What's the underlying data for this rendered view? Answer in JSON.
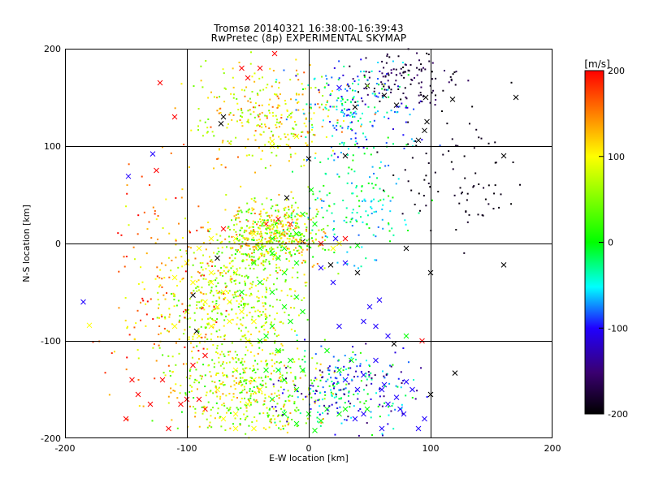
{
  "chart_data": {
    "type": "scatter",
    "title": "Tromsø 20140321 16:38:00-16:39:43",
    "subtitle": "RwPretec (8p) EXPERIMENTAL SKYMAP",
    "xlabel": "E-W location [km]",
    "ylabel": "N-S location [km]",
    "xlim": [
      -200,
      200
    ],
    "ylim": [
      -200,
      200
    ],
    "xticks": [
      "-200",
      "-100",
      "0",
      "100",
      "200"
    ],
    "yticks": [
      "-200",
      "-100",
      "0",
      "100",
      "200"
    ],
    "grid": true,
    "colorbar": {
      "label": "[m/s]",
      "range": [
        -200,
        200
      ],
      "ticks": [
        "200",
        "100",
        "0",
        "-100",
        "-200"
      ],
      "colormap": [
        "#000000",
        "#3a0070",
        "#2000ff",
        "#00ffff",
        "#00ff00",
        "#ffff00",
        "#ff0000"
      ]
    },
    "marker_types": [
      "x",
      "dot"
    ],
    "series": [
      {
        "marker": "x",
        "points": [
          [
            -122,
            165,
            200
          ],
          [
            -110,
            130,
            200
          ],
          [
            -128,
            92,
            -100
          ],
          [
            -148,
            69,
            -100
          ],
          [
            -125,
            75,
            200
          ],
          [
            -185,
            -60,
            -100
          ],
          [
            -180,
            -84,
            100
          ],
          [
            -95,
            -53,
            -200
          ],
          [
            -92,
            -90,
            -200
          ],
          [
            -75,
            -15,
            -200
          ],
          [
            -70,
            130,
            -200
          ],
          [
            -72,
            123,
            -200
          ],
          [
            -55,
            180,
            200
          ],
          [
            -50,
            170,
            200
          ],
          [
            -40,
            180,
            200
          ],
          [
            -28,
            195,
            200
          ],
          [
            -30,
            105,
            100
          ],
          [
            -30,
            100,
            100
          ],
          [
            -10,
            110,
            100
          ],
          [
            -5,
            2,
            -200
          ],
          [
            -25,
            -15,
            0
          ],
          [
            -18,
            47,
            -200
          ],
          [
            2,
            55,
            0
          ],
          [
            0,
            87,
            -200
          ],
          [
            30,
            90,
            -200
          ],
          [
            25,
            160,
            -100
          ],
          [
            38,
            140,
            -200
          ],
          [
            48,
            162,
            -200
          ],
          [
            62,
            152,
            -200
          ],
          [
            72,
            142,
            -200
          ],
          [
            90,
            106,
            -200
          ],
          [
            95,
            116,
            -200
          ],
          [
            96,
            150,
            -200
          ],
          [
            97,
            125,
            -200
          ],
          [
            118,
            148,
            -200
          ],
          [
            170,
            150,
            -200
          ],
          [
            160,
            90,
            -200
          ],
          [
            160,
            -22,
            -200
          ],
          [
            120,
            -133,
            -200
          ],
          [
            100,
            -155,
            -200
          ],
          [
            95,
            -180,
            -100
          ],
          [
            80,
            -142,
            -100
          ],
          [
            70,
            -103,
            -200
          ],
          [
            55,
            -85,
            -100
          ],
          [
            55,
            -120,
            -100
          ],
          [
            40,
            -150,
            -100
          ],
          [
            35,
            -120,
            0
          ],
          [
            48,
            -170,
            0
          ],
          [
            60,
            -190,
            -100
          ],
          [
            75,
            -170,
            -100
          ],
          [
            78,
            -175,
            -100
          ],
          [
            90,
            -190,
            -100
          ],
          [
            65,
            -165,
            -100
          ],
          [
            72,
            -158,
            -100
          ],
          [
            62,
            -145,
            -100
          ],
          [
            45,
            -175,
            -100
          ],
          [
            30,
            -170,
            0
          ],
          [
            15,
            -170,
            0
          ],
          [
            40,
            -30,
            -200
          ],
          [
            -140,
            -155,
            200
          ],
          [
            -130,
            -165,
            200
          ],
          [
            -105,
            -165,
            200
          ],
          [
            -100,
            -160,
            200
          ],
          [
            -90,
            -160,
            200
          ],
          [
            -85,
            -115,
            200
          ],
          [
            -95,
            -125,
            200
          ],
          [
            -75,
            -150,
            100
          ],
          [
            -60,
            -175,
            100
          ],
          [
            -50,
            -165,
            100
          ],
          [
            -40,
            -150,
            100
          ],
          [
            -30,
            -160,
            0
          ],
          [
            -20,
            -140,
            0
          ],
          [
            -10,
            -150,
            0
          ],
          [
            -20,
            -175,
            0
          ],
          [
            -10,
            -185,
            0
          ],
          [
            0,
            -175,
            0
          ],
          [
            5,
            -192,
            0
          ],
          [
            -45,
            -190,
            100
          ],
          [
            -60,
            -190,
            100
          ],
          [
            -70,
            -180,
            100
          ],
          [
            -85,
            -170,
            200
          ],
          [
            -25,
            -110,
            0
          ],
          [
            -15,
            -120,
            0
          ],
          [
            -5,
            -130,
            0
          ],
          [
            -35,
            -95,
            0
          ],
          [
            -45,
            -80,
            100
          ],
          [
            -55,
            -70,
            100
          ],
          [
            -65,
            -60,
            100
          ],
          [
            -70,
            -50,
            100
          ],
          [
            -55,
            -50,
            0
          ],
          [
            -40,
            -40,
            0
          ],
          [
            -30,
            -50,
            0
          ],
          [
            -20,
            -30,
            0
          ],
          [
            -10,
            -20,
            0
          ],
          [
            -60,
            -30,
            100
          ],
          [
            -80,
            -30,
            100
          ],
          [
            -80,
            -40,
            100
          ],
          [
            -75,
            -65,
            100
          ],
          [
            -65,
            -80,
            100
          ],
          [
            -50,
            -100,
            100
          ],
          [
            -40,
            -100,
            0
          ],
          [
            -30,
            -85,
            0
          ],
          [
            -20,
            -65,
            0
          ],
          [
            -10,
            -55,
            0
          ],
          [
            -5,
            -70,
            0
          ],
          [
            -15,
            -80,
            0
          ],
          [
            -45,
            -20,
            0
          ],
          [
            -30,
            -10,
            0
          ],
          [
            -20,
            -5,
            0
          ],
          [
            -45,
            10,
            100
          ],
          [
            -35,
            20,
            200
          ],
          [
            -25,
            25,
            200
          ],
          [
            -15,
            20,
            200
          ],
          [
            -5,
            30,
            0
          ],
          [
            -10,
            10,
            0
          ],
          [
            -30,
            5,
            0
          ],
          [
            -40,
            -5,
            0
          ],
          [
            10,
            0,
            200
          ],
          [
            20,
            -5,
            100
          ],
          [
            30,
            5,
            200
          ],
          [
            25,
            0,
            100
          ],
          [
            5,
            20,
            0
          ],
          [
            -60,
            5,
            100
          ],
          [
            -70,
            15,
            200
          ],
          [
            -80,
            5,
            100
          ],
          [
            -90,
            -5,
            100
          ],
          [
            -100,
            -20,
            100
          ],
          [
            -110,
            -35,
            100
          ],
          [
            -95,
            -40,
            100
          ],
          [
            -85,
            -60,
            100
          ],
          [
            -100,
            -70,
            100
          ],
          [
            -110,
            -85,
            100
          ],
          [
            -90,
            -95,
            100
          ],
          [
            -80,
            -85,
            100
          ],
          [
            -120,
            -140,
            200
          ],
          [
            -145,
            -140,
            200
          ],
          [
            -150,
            -180,
            200
          ],
          [
            -115,
            -190,
            200
          ],
          [
            -60,
            -130,
            100
          ],
          [
            -45,
            -140,
            100
          ],
          [
            -35,
            -130,
            0
          ],
          [
            -25,
            -130,
            0
          ],
          [
            15,
            -110,
            0
          ],
          [
            25,
            -130,
            0
          ],
          [
            30,
            -140,
            -100
          ],
          [
            45,
            -135,
            -100
          ],
          [
            25,
            -175,
            0
          ],
          [
            10,
            -182,
            0
          ],
          [
            38,
            -180,
            -100
          ],
          [
            60,
            -150,
            -100
          ],
          [
            85,
            -150,
            -100
          ],
          [
            93,
            -100,
            200
          ],
          [
            80,
            -95,
            0
          ],
          [
            65,
            -95,
            -100
          ],
          [
            25,
            -85,
            -100
          ],
          [
            45,
            -80,
            -100
          ],
          [
            50,
            -65,
            -100
          ],
          [
            58,
            -58,
            -100
          ],
          [
            10,
            -25,
            -100
          ],
          [
            18,
            -22,
            -200
          ],
          [
            30,
            -20,
            -100
          ],
          [
            20,
            -40,
            -100
          ],
          [
            40,
            -2,
            0
          ],
          [
            80,
            -5,
            -200
          ],
          [
            100,
            -30,
            -200
          ],
          [
            22,
            5,
            -100
          ]
        ]
      },
      {
        "marker": "dot",
        "note": "",
        "points": []
      }
    ]
  }
}
